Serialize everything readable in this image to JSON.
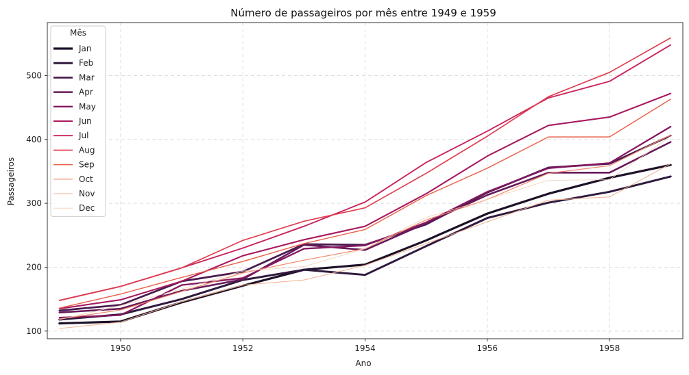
{
  "chart_data": {
    "type": "line",
    "title": "Número de passageiros por mês entre 1949 e 1959",
    "xlabel": "Ano",
    "ylabel": "Passageiros",
    "xlim": [
      1948.8,
      1959.2
    ],
    "ylim": [
      88,
      583
    ],
    "xticks": [
      "1950",
      "1952",
      "1954",
      "1956",
      "1958"
    ],
    "yticks": [
      "100",
      "200",
      "300",
      "400",
      "500"
    ],
    "grid": true,
    "legend": {
      "title": "Mês",
      "placement": "top-left"
    },
    "x": [
      1949,
      1950,
      1951,
      1952,
      1953,
      1954,
      1955,
      1956,
      1957,
      1958,
      1959
    ],
    "series": [
      {
        "name": "Jan",
        "color": "#1d1128",
        "values": [
          112,
          115,
          145,
          171,
          196,
          204,
          242,
          284,
          315,
          340,
          360
        ]
      },
      {
        "name": "Feb",
        "color": "#2f1a3e",
        "values": [
          118,
          126,
          150,
          180,
          196,
          188,
          233,
          277,
          301,
          318,
          342
        ]
      },
      {
        "name": "Mar",
        "color": "#4a1c4f",
        "values": [
          132,
          141,
          178,
          193,
          236,
          235,
          267,
          317,
          356,
          362,
          406
        ]
      },
      {
        "name": "Apr",
        "color": "#66195a",
        "values": [
          129,
          135,
          163,
          181,
          235,
          227,
          269,
          313,
          348,
          348,
          396
        ]
      },
      {
        "name": "May",
        "color": "#85175f",
        "values": [
          121,
          125,
          172,
          183,
          229,
          234,
          270,
          318,
          355,
          363,
          420
        ]
      },
      {
        "name": "Jun",
        "color": "#a81a5f",
        "values": [
          135,
          149,
          178,
          218,
          243,
          264,
          315,
          374,
          422,
          435,
          472
        ]
      },
      {
        "name": "Jul",
        "color": "#c8245c",
        "values": [
          148,
          170,
          199,
          230,
          264,
          302,
          364,
          413,
          465,
          491,
          548
        ]
      },
      {
        "name": "Aug",
        "color": "#df3d4e",
        "values": [
          148,
          170,
          199,
          242,
          272,
          293,
          347,
          405,
          467,
          505,
          559
        ]
      },
      {
        "name": "Sep",
        "color": "#e9614a",
        "values": [
          136,
          158,
          184,
          209,
          237,
          259,
          312,
          355,
          404,
          404,
          463
        ]
      },
      {
        "name": "Oct",
        "color": "#f08b6e",
        "values": [
          119,
          133,
          162,
          191,
          211,
          229,
          274,
          306,
          347,
          359,
          407
        ]
      },
      {
        "name": "Nov",
        "color": "#f3b08f",
        "values": [
          104,
          114,
          146,
          172,
          180,
          203,
          237,
          271,
          305,
          310,
          362
        ]
      },
      {
        "name": "Dec",
        "color": "#f4cfb3",
        "values": [
          118,
          140,
          166,
          194,
          201,
          229,
          278,
          306,
          336,
          337,
          405
        ]
      }
    ]
  }
}
